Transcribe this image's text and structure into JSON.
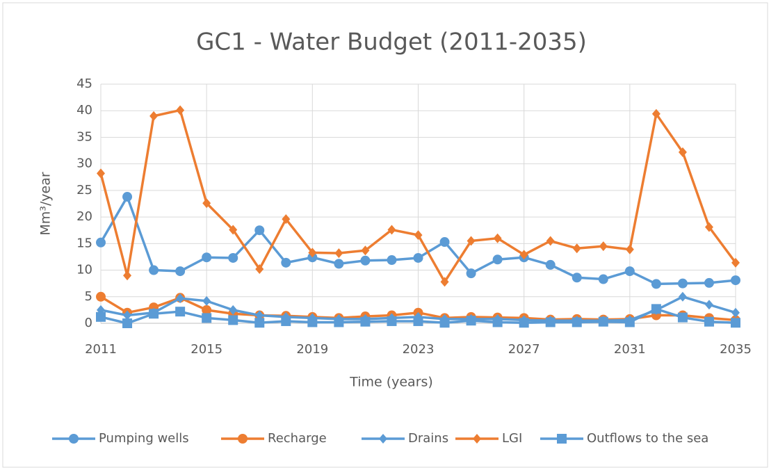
{
  "chart_data": {
    "type": "line",
    "title": "GC1 - Water Budget (2011-2035)",
    "x_label": "Time (years)",
    "y_label": "Mm³/year",
    "x": [
      2011,
      2012,
      2013,
      2014,
      2015,
      2016,
      2017,
      2018,
      2019,
      2020,
      2021,
      2022,
      2023,
      2024,
      2025,
      2026,
      2027,
      2028,
      2029,
      2030,
      2031,
      2032,
      2033,
      2034,
      2035
    ],
    "xlim": [
      2011,
      2035
    ],
    "xticks": [
      2011,
      2015,
      2019,
      2023,
      2027,
      2031,
      2035
    ],
    "ylim": [
      0,
      45
    ],
    "yticks": [
      0,
      5,
      10,
      15,
      20,
      25,
      30,
      35,
      40,
      45
    ],
    "grid": true,
    "legend": "bottom",
    "series": [
      {
        "name": "Pumping wells",
        "color": "#5b9bd5",
        "marker": "circle",
        "values": [
          15.2,
          23.8,
          10.0,
          9.8,
          12.4,
          12.3,
          17.5,
          11.4,
          12.4,
          11.2,
          11.8,
          11.9,
          12.3,
          15.3,
          9.4,
          12.0,
          12.4,
          11.0,
          8.6,
          8.3,
          9.8,
          7.4,
          7.5,
          7.6,
          8.1
        ]
      },
      {
        "name": "Recharge",
        "color": "#ed7d31",
        "marker": "circle",
        "values": [
          5.0,
          2.0,
          3.0,
          4.8,
          2.5,
          1.8,
          1.5,
          1.4,
          1.2,
          1.0,
          1.3,
          1.5,
          2.0,
          1.0,
          1.2,
          1.1,
          1.0,
          0.7,
          0.8,
          0.7,
          0.8,
          1.5,
          1.5,
          1.0,
          0.6
        ]
      },
      {
        "name": "Drains",
        "color": "#5b9bd5",
        "marker": "diamond",
        "values": [
          2.5,
          1.5,
          2.0,
          4.7,
          4.2,
          2.5,
          1.5,
          1.2,
          1.0,
          0.8,
          0.8,
          1.0,
          1.2,
          0.8,
          0.8,
          0.8,
          0.6,
          0.5,
          0.5,
          0.5,
          0.6,
          2.5,
          5.0,
          3.5,
          2.0
        ]
      },
      {
        "name": "LGI",
        "color": "#ed7d31",
        "marker": "diamond",
        "values": [
          28.2,
          9.0,
          39.0,
          40.1,
          22.6,
          17.6,
          10.2,
          19.6,
          13.3,
          13.2,
          13.7,
          17.6,
          16.6,
          7.8,
          15.5,
          16.0,
          12.9,
          15.5,
          14.1,
          14.5,
          13.9,
          39.4,
          32.2,
          18.1,
          11.4
        ]
      },
      {
        "name": "Outflows to the sea",
        "color": "#5b9bd5",
        "marker": "square",
        "values": [
          1.2,
          0.0,
          1.8,
          2.2,
          1.0,
          0.6,
          0.1,
          0.4,
          0.2,
          0.2,
          0.3,
          0.4,
          0.4,
          0.1,
          0.5,
          0.2,
          0.1,
          0.2,
          0.2,
          0.3,
          0.2,
          2.7,
          1.1,
          0.3,
          0.1
        ]
      }
    ]
  }
}
